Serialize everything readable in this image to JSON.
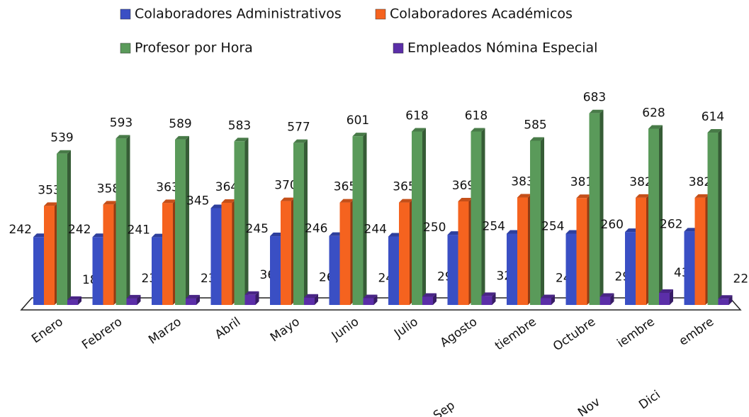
{
  "chart_data": {
    "type": "bar",
    "categories": [
      "Enero",
      "Febrero",
      "Marzo",
      "Abril",
      "Mayo",
      "Junio",
      "Julio",
      "Agosto",
      "tiembre",
      "Octubre",
      "iembre",
      "embre"
    ],
    "annotations": [
      "Sep",
      "Nov",
      "Dici"
    ],
    "series": [
      {
        "name": "Colaboradores Administrativos",
        "color": "#3a4fc4",
        "values": [
          242,
          242,
          241,
          345,
          245,
          246,
          244,
          250,
          254,
          254,
          260,
          262
        ]
      },
      {
        "name": "Colaboradores Académicos",
        "color": "#f5631f",
        "values": [
          353,
          358,
          363,
          364,
          370,
          365,
          365,
          369,
          383,
          381,
          382,
          382
        ]
      },
      {
        "name": "Profesor por Hora",
        "color": "#5a9a5a",
        "values": [
          539,
          593,
          589,
          583,
          577,
          601,
          618,
          618,
          585,
          683,
          628,
          614
        ]
      },
      {
        "name": "Empleados Nómina Especial",
        "color": "#5b2ea8",
        "values": [
          18,
          23,
          23,
          36,
          26,
          24,
          29,
          32,
          24,
          29,
          43,
          22
        ]
      }
    ],
    "ylim": [
      0,
      700
    ]
  }
}
